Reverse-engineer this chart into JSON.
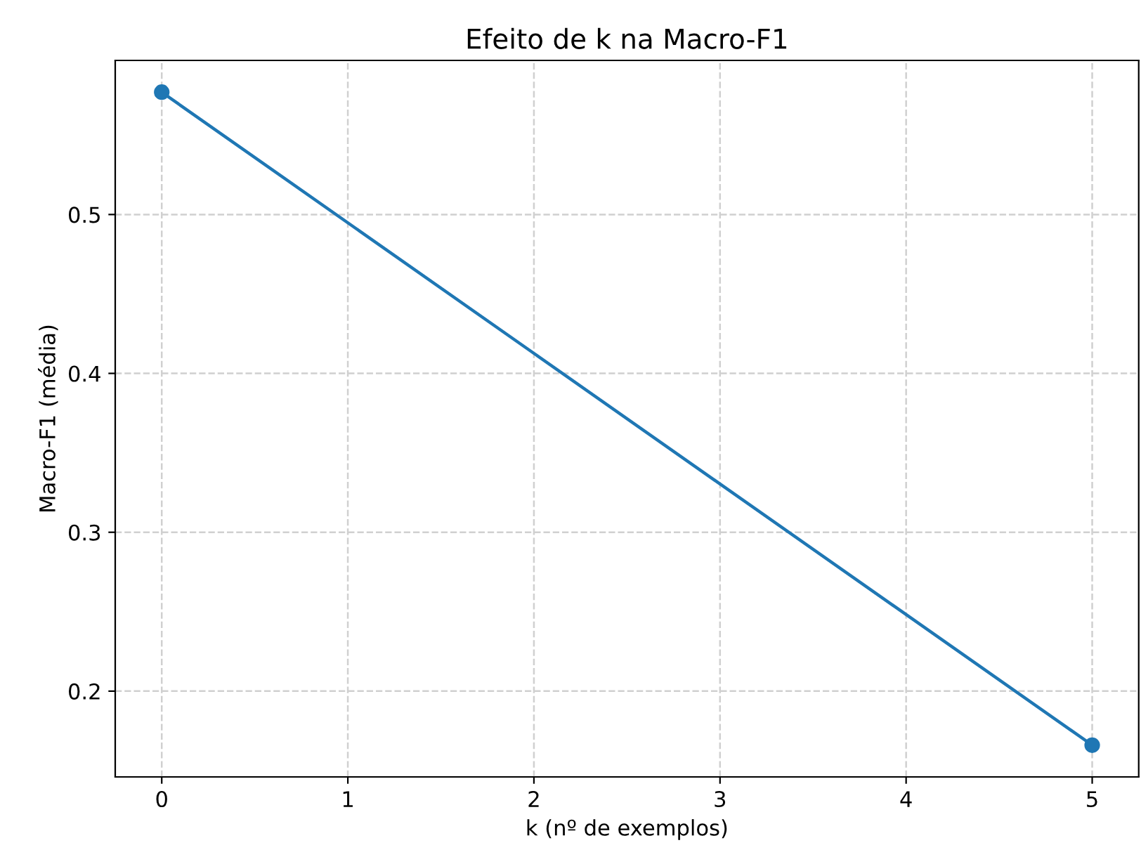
{
  "chart_data": {
    "type": "line",
    "title": "Efeito de k na Macro-F1",
    "xlabel": "k (nº de exemplos)",
    "ylabel": "Macro-F1 (média)",
    "x": [
      0,
      5
    ],
    "series": [
      {
        "color": "#1f77b4",
        "values": [
          0.577,
          0.166
        ]
      }
    ],
    "xlim": [
      -0.25,
      5.25
    ],
    "xticks": [
      0,
      1,
      2,
      3,
      4,
      5
    ],
    "ylim": [
      0.146,
      0.597
    ],
    "yticks": [
      0.2,
      0.3,
      0.4,
      0.5
    ],
    "grid": true,
    "marker": "circle",
    "line_style": "solid"
  }
}
